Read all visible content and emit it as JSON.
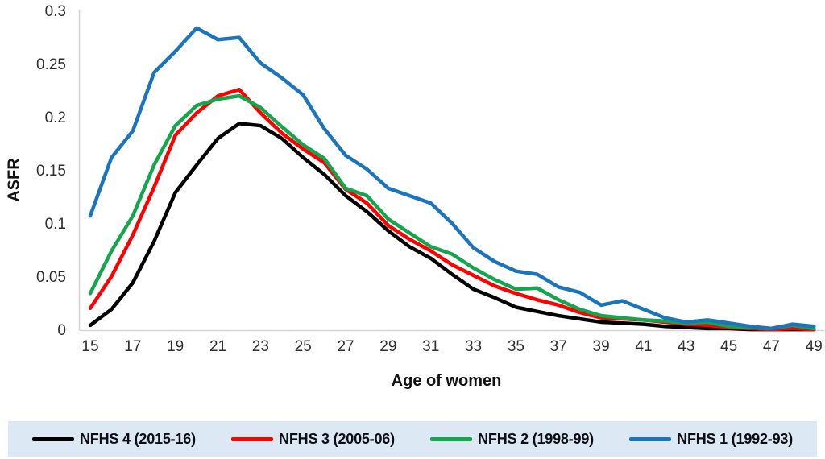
{
  "chart_data": {
    "type": "line",
    "title": "",
    "xlabel": "Age of women",
    "ylabel": "ASFR",
    "x": [
      15,
      16,
      17,
      18,
      19,
      20,
      21,
      22,
      23,
      24,
      25,
      26,
      27,
      28,
      29,
      30,
      31,
      32,
      33,
      34,
      35,
      36,
      37,
      38,
      39,
      40,
      41,
      42,
      43,
      44,
      45,
      46,
      47,
      48,
      49
    ],
    "xticks": [
      15,
      17,
      19,
      21,
      23,
      25,
      27,
      29,
      31,
      33,
      35,
      37,
      39,
      41,
      43,
      45,
      47,
      49
    ],
    "yticks": [
      0,
      0.05,
      0.1,
      0.15,
      0.2,
      0.25,
      0.3
    ],
    "ytick_labels": [
      "0",
      "0.05",
      "0.1",
      "0.15",
      "0.2",
      "0.25",
      "0.3"
    ],
    "ylim": [
      0,
      0.3
    ],
    "grid": false,
    "legend_position": "bottom",
    "legend_bg": "#dce8f3",
    "axis_line_color": "#d6d6d6",
    "series": [
      {
        "name": "NFHS 4 (2015-16)",
        "color": "#000000",
        "values": [
          0.005,
          0.02,
          0.045,
          0.084,
          0.13,
          0.156,
          0.181,
          0.195,
          0.193,
          0.181,
          0.163,
          0.147,
          0.127,
          0.112,
          0.094,
          0.079,
          0.068,
          0.053,
          0.039,
          0.031,
          0.022,
          0.018,
          0.014,
          0.011,
          0.008,
          0.007,
          0.006,
          0.004,
          0.003,
          0.002,
          0.002,
          0.001,
          0.001,
          0.001,
          0.001
        ]
      },
      {
        "name": "NFHS 3 (2005-06)",
        "color": "#fe0000",
        "values": [
          0.021,
          0.051,
          0.09,
          0.135,
          0.184,
          0.205,
          0.221,
          0.227,
          0.205,
          0.186,
          0.171,
          0.158,
          0.133,
          0.12,
          0.099,
          0.086,
          0.075,
          0.062,
          0.052,
          0.042,
          0.035,
          0.029,
          0.024,
          0.017,
          0.012,
          0.011,
          0.01,
          0.008,
          0.006,
          0.005,
          0.003,
          0.002,
          0.001,
          0.002,
          0.001
        ]
      },
      {
        "name": "NFHS 2 (1998-99)",
        "color": "#14a64e",
        "values": [
          0.035,
          0.075,
          0.108,
          0.156,
          0.193,
          0.212,
          0.218,
          0.221,
          0.21,
          0.192,
          0.175,
          0.162,
          0.134,
          0.127,
          0.105,
          0.092,
          0.079,
          0.072,
          0.059,
          0.048,
          0.039,
          0.04,
          0.029,
          0.02,
          0.014,
          0.012,
          0.01,
          0.009,
          0.007,
          0.008,
          0.004,
          0.003,
          0.002,
          0.005,
          0.002
        ]
      },
      {
        "name": "NFHS 1 (1992-93)",
        "color": "#1c75bc",
        "values": [
          0.108,
          0.163,
          0.188,
          0.243,
          0.263,
          0.285,
          0.274,
          0.276,
          0.252,
          0.238,
          0.222,
          0.19,
          0.165,
          0.152,
          0.134,
          0.127,
          0.12,
          0.101,
          0.078,
          0.065,
          0.056,
          0.053,
          0.041,
          0.036,
          0.024,
          0.028,
          0.02,
          0.012,
          0.008,
          0.01,
          0.007,
          0.004,
          0.002,
          0.006,
          0.004
        ]
      }
    ]
  }
}
